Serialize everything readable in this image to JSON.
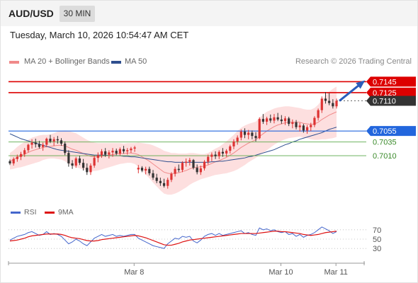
{
  "header": {
    "symbol": "AUD/USD",
    "timeframe": "30 MIN"
  },
  "datetime": "Tuesday, March 10, 2026 10:54:47 AM CET",
  "legend": {
    "ma20_label": "MA 20 + Bollinger Bands",
    "ma50_label": "MA 50",
    "ma20_color": "#f08a8a",
    "ma50_color": "#2f4f8f"
  },
  "credit": "Research © 2026 Trading Central",
  "colors": {
    "resistance": "#dd0000",
    "pivot": "#2266dd",
    "support": "#5aaa4a",
    "current": "#333333",
    "bull": "#dd3333",
    "bear": "#333333",
    "band_fill": "#fddcdc",
    "rsi": "#4466cc",
    "rsi_ma": "#dd1111",
    "arrow": "#2a5dbb"
  },
  "levels": [
    {
      "value": 0.7145,
      "label": "0.7145",
      "kind": "resistance"
    },
    {
      "value": 0.7125,
      "label": "0.7125",
      "kind": "resistance"
    },
    {
      "value": 0.711,
      "label": "0.7110",
      "kind": "current"
    },
    {
      "value": 0.7055,
      "label": "0.7055",
      "kind": "pivot"
    },
    {
      "value": 0.7035,
      "label": "0.7035",
      "kind": "support"
    },
    {
      "value": 0.701,
      "label": "0.7010",
      "kind": "support"
    }
  ],
  "rsi_panel": {
    "rsi_label": "RSI",
    "ma_label": "9MA",
    "ticks": [
      70,
      50,
      30
    ]
  },
  "chart_data": {
    "type": "candlestick",
    "instrument": "AUD/USD",
    "interval": "30 MIN",
    "xlabels": [
      "Mar 8",
      "Mar 10",
      "Mar 11"
    ],
    "ylim": [
      0.6925,
      0.717
    ],
    "candles": [
      [
        0.7,
        0.7003,
        0.6993,
        0.6996
      ],
      [
        0.6996,
        0.7007,
        0.6992,
        0.7004
      ],
      [
        0.7004,
        0.7012,
        0.6999,
        0.7008
      ],
      [
        0.7008,
        0.7017,
        0.7002,
        0.7013
      ],
      [
        0.7013,
        0.7024,
        0.7008,
        0.702
      ],
      [
        0.702,
        0.7032,
        0.7016,
        0.703
      ],
      [
        0.703,
        0.704,
        0.7023,
        0.7034
      ],
      [
        0.7034,
        0.7041,
        0.7025,
        0.7031
      ],
      [
        0.7031,
        0.7037,
        0.7023,
        0.7026
      ],
      [
        0.7026,
        0.7034,
        0.7019,
        0.703
      ],
      [
        0.703,
        0.7043,
        0.7026,
        0.7041
      ],
      [
        0.7041,
        0.7048,
        0.7033,
        0.7036
      ],
      [
        0.7036,
        0.7044,
        0.7028,
        0.704
      ],
      [
        0.704,
        0.7046,
        0.7032,
        0.7038
      ],
      [
        0.7038,
        0.7042,
        0.7028,
        0.7032
      ],
      [
        0.7032,
        0.7036,
        0.7011,
        0.7015
      ],
      [
        0.7015,
        0.702,
        0.699,
        0.6996
      ],
      [
        0.6996,
        0.7002,
        0.6986,
        0.6992
      ],
      [
        0.6992,
        0.7008,
        0.6988,
        0.7005
      ],
      [
        0.7005,
        0.701,
        0.6993,
        0.6997
      ],
      [
        0.6997,
        0.7004,
        0.6983,
        0.6988
      ],
      [
        0.6988,
        0.6996,
        0.6975,
        0.698
      ],
      [
        0.698,
        0.6996,
        0.6975,
        0.6992
      ],
      [
        0.6992,
        0.701,
        0.6988,
        0.7006
      ],
      [
        0.7006,
        0.7016,
        0.6998,
        0.7011
      ],
      [
        0.7011,
        0.7022,
        0.7006,
        0.7018
      ],
      [
        0.7018,
        0.7024,
        0.7008,
        0.7012
      ],
      [
        0.7012,
        0.702,
        0.7005,
        0.7016
      ],
      [
        0.7016,
        0.7024,
        0.7008,
        0.7019
      ],
      [
        0.7019,
        0.7023,
        0.7011,
        0.7014
      ],
      [
        0.7014,
        0.7025,
        0.701,
        0.7022
      ],
      [
        0.7022,
        0.7028,
        0.7014,
        0.7018
      ],
      [
        0.7018,
        0.7024,
        0.7012,
        0.702
      ],
      [
        0.702,
        0.7026,
        0.7015,
        0.7023
      ],
      [
        0.7023,
        0.7028,
        0.7017,
        0.7025
      ],
      [
        0.6985,
        0.6993,
        0.6978,
        0.6988
      ],
      [
        0.6988,
        0.6991,
        0.698,
        0.6983
      ],
      [
        0.6983,
        0.699,
        0.6976,
        0.6986
      ],
      [
        0.6986,
        0.699,
        0.6974,
        0.6978
      ],
      [
        0.6978,
        0.6984,
        0.6966,
        0.697
      ],
      [
        0.697,
        0.6977,
        0.696,
        0.6964
      ],
      [
        0.6964,
        0.697,
        0.6955,
        0.696
      ],
      [
        0.696,
        0.6968,
        0.6952,
        0.6955
      ],
      [
        0.6955,
        0.697,
        0.695,
        0.6966
      ],
      [
        0.6966,
        0.698,
        0.6962,
        0.6977
      ],
      [
        0.6977,
        0.699,
        0.6972,
        0.6986
      ],
      [
        0.6986,
        0.6994,
        0.698,
        0.6984
      ],
      [
        0.6984,
        0.7,
        0.698,
        0.6997
      ],
      [
        0.6997,
        0.7005,
        0.699,
        0.6999
      ],
      [
        0.6999,
        0.7006,
        0.6992,
        0.7002
      ],
      [
        0.7002,
        0.7004,
        0.6985,
        0.6988
      ],
      [
        0.6988,
        0.6994,
        0.6976,
        0.698
      ],
      [
        0.698,
        0.6992,
        0.6975,
        0.6987
      ],
      [
        0.6987,
        0.7002,
        0.6983,
        0.6999
      ],
      [
        0.6999,
        0.7012,
        0.6994,
        0.7008
      ],
      [
        0.7008,
        0.7016,
        0.7,
        0.7012
      ],
      [
        0.7012,
        0.7018,
        0.7004,
        0.7009
      ],
      [
        0.7009,
        0.702,
        0.7004,
        0.7017
      ],
      [
        0.7017,
        0.7024,
        0.7008,
        0.7014
      ],
      [
        0.7014,
        0.7022,
        0.7008,
        0.7019
      ],
      [
        0.7019,
        0.703,
        0.7014,
        0.7027
      ],
      [
        0.7027,
        0.704,
        0.7022,
        0.7036
      ],
      [
        0.7036,
        0.7047,
        0.703,
        0.7043
      ],
      [
        0.7043,
        0.7058,
        0.7038,
        0.7054
      ],
      [
        0.7054,
        0.706,
        0.7042,
        0.7048
      ],
      [
        0.7048,
        0.7057,
        0.704,
        0.7052
      ],
      [
        0.7052,
        0.7056,
        0.704,
        0.7046
      ],
      [
        0.7046,
        0.7053,
        0.7036,
        0.7042
      ],
      [
        0.7042,
        0.708,
        0.704,
        0.7077
      ],
      [
        0.7077,
        0.7086,
        0.7068,
        0.7072
      ],
      [
        0.7072,
        0.7081,
        0.7066,
        0.7078
      ],
      [
        0.7078,
        0.7085,
        0.707,
        0.7074
      ],
      [
        0.7074,
        0.7086,
        0.7069,
        0.708
      ],
      [
        0.708,
        0.7088,
        0.7073,
        0.7076
      ],
      [
        0.7076,
        0.7084,
        0.7068,
        0.7073
      ],
      [
        0.7073,
        0.7082,
        0.7066,
        0.7078
      ],
      [
        0.7078,
        0.7081,
        0.7064,
        0.7068
      ],
      [
        0.7068,
        0.7076,
        0.706,
        0.7071
      ],
      [
        0.7071,
        0.7075,
        0.7058,
        0.7062
      ],
      [
        0.7062,
        0.707,
        0.7054,
        0.7065
      ],
      [
        0.7065,
        0.7068,
        0.7052,
        0.7056
      ],
      [
        0.7056,
        0.7066,
        0.705,
        0.7062
      ],
      [
        0.7062,
        0.707,
        0.7055,
        0.7066
      ],
      [
        0.7066,
        0.7082,
        0.7062,
        0.7079
      ],
      [
        0.7079,
        0.7096,
        0.7074,
        0.7093
      ],
      [
        0.7093,
        0.7118,
        0.7088,
        0.7114
      ],
      [
        0.7114,
        0.7126,
        0.7105,
        0.711
      ],
      [
        0.711,
        0.7124,
        0.7102,
        0.7106
      ],
      [
        0.7106,
        0.7113,
        0.7096,
        0.71
      ],
      [
        0.71,
        0.7114,
        0.7096,
        0.711
      ]
    ],
    "ma20": [
      0.7,
      0.7003,
      0.7007,
      0.701,
      0.7013,
      0.7016,
      0.7019,
      0.7021,
      0.7023,
      0.7025,
      0.7026,
      0.7027,
      0.7028,
      0.7029,
      0.7029,
      0.7028,
      0.7025,
      0.7022,
      0.702,
      0.7017,
      0.7014,
      0.7011,
      0.7009,
      0.7008,
      0.7008,
      0.7009,
      0.701,
      0.7011,
      0.7012,
      0.7013,
      0.7014,
      0.7014,
      0.7015,
      0.7015,
      0.7014,
      0.7012,
      0.7008,
      0.7004,
      0.7,
      0.6995,
      0.699,
      0.6985,
      0.698,
      0.6978,
      0.6977,
      0.6978,
      0.6979,
      0.6981,
      0.6983,
      0.6986,
      0.6988,
      0.6989,
      0.699,
      0.6991,
      0.6993,
      0.6996,
      0.6999,
      0.7001,
      0.7004,
      0.7007,
      0.7011,
      0.7015,
      0.702,
      0.7025,
      0.7029,
      0.7033,
      0.7036,
      0.7039,
      0.7045,
      0.705,
      0.7055,
      0.7059,
      0.7063,
      0.7066,
      0.7068,
      0.707,
      0.7071,
      0.7071,
      0.7071,
      0.7071,
      0.7069,
      0.7068,
      0.7067,
      0.7068,
      0.7071,
      0.7076,
      0.708,
      0.7084,
      0.7087,
      0.709
    ],
    "ma50": [
      0.705,
      0.7047,
      0.7044,
      0.7041,
      0.7039,
      0.7037,
      0.7035,
      0.7033,
      0.7031,
      0.7029,
      0.7027,
      0.7025,
      0.7023,
      0.7021,
      0.702,
      0.7019,
      0.7018,
      0.7017,
      0.7016,
      0.7015,
      0.7014,
      0.7013,
      0.7012,
      0.7011,
      0.7011,
      0.7011,
      0.7011,
      0.701,
      0.701,
      0.701,
      0.701,
      0.7009,
      0.7009,
      0.7008,
      0.7008,
      0.7007,
      0.7006,
      0.7005,
      0.7004,
      0.7003,
      0.7002,
      0.7001,
      0.7,
      0.6999,
      0.6999,
      0.6998,
      0.6998,
      0.6998,
      0.6998,
      0.6998,
      0.6998,
      0.6998,
      0.6998,
      0.6998,
      0.6998,
      0.6999,
      0.6999,
      0.7,
      0.7,
      0.7001,
      0.7002,
      0.7003,
      0.7004,
      0.7005,
      0.7006,
      0.7008,
      0.7009,
      0.7011,
      0.7013,
      0.7015,
      0.7017,
      0.7019,
      0.7021,
      0.7024,
      0.7027,
      0.703,
      0.7032,
      0.7035,
      0.7037,
      0.704,
      0.7042,
      0.7044,
      0.7046,
      0.7048,
      0.705,
      0.7052,
      0.7055,
      0.7058,
      0.706,
      0.7062
    ],
    "band_half_width": [
      0.0015,
      0.0017,
      0.0019,
      0.0021,
      0.0022,
      0.0023,
      0.0024,
      0.0024,
      0.0024,
      0.0023,
      0.0022,
      0.0022,
      0.0023,
      0.0025,
      0.0026,
      0.0028,
      0.003,
      0.0031,
      0.0031,
      0.003,
      0.0029,
      0.0028,
      0.0027,
      0.0026,
      0.0025,
      0.0024,
      0.0023,
      0.0022,
      0.0021,
      0.002,
      0.0019,
      0.0018,
      0.0018,
      0.0018,
      0.0019,
      0.0022,
      0.0025,
      0.0028,
      0.0031,
      0.0034,
      0.0036,
      0.0038,
      0.0039,
      0.0039,
      0.0038,
      0.0037,
      0.0035,
      0.0033,
      0.0031,
      0.0029,
      0.0027,
      0.0025,
      0.0023,
      0.0022,
      0.0022,
      0.0023,
      0.0024,
      0.0025,
      0.0027,
      0.0029,
      0.0031,
      0.0033,
      0.0035,
      0.0036,
      0.0036,
      0.0035,
      0.0034,
      0.0033,
      0.0034,
      0.0035,
      0.0035,
      0.0034,
      0.0033,
      0.0032,
      0.0031,
      0.003,
      0.0029,
      0.0028,
      0.0027,
      0.0026,
      0.0026,
      0.0026,
      0.0027,
      0.0029,
      0.0032,
      0.0036,
      0.004,
      0.0043,
      0.0045,
      0.0046
    ],
    "rsi": [
      48,
      52,
      56,
      58,
      60,
      64,
      66,
      62,
      58,
      60,
      66,
      60,
      62,
      60,
      56,
      48,
      40,
      44,
      50,
      46,
      40,
      36,
      44,
      52,
      56,
      60,
      56,
      58,
      60,
      56,
      58,
      56,
      58,
      60,
      60,
      52,
      48,
      44,
      40,
      36,
      34,
      32,
      30,
      40,
      46,
      52,
      50,
      56,
      54,
      56,
      46,
      42,
      48,
      56,
      60,
      62,
      58,
      62,
      58,
      60,
      62,
      64,
      66,
      68,
      62,
      64,
      60,
      58,
      74,
      70,
      72,
      68,
      70,
      66,
      64,
      66,
      60,
      62,
      56,
      60,
      54,
      58,
      60,
      64,
      70,
      76,
      72,
      68,
      62,
      66
    ],
    "rsi_ma": [
      46,
      47,
      48,
      50,
      52,
      55,
      57,
      58,
      59,
      60,
      61,
      61,
      61,
      61,
      60,
      58,
      55,
      53,
      52,
      51,
      49,
      47,
      46,
      46,
      47,
      49,
      50,
      51,
      52,
      53,
      54,
      55,
      56,
      57,
      58,
      57,
      55,
      53,
      50,
      47,
      44,
      41,
      38,
      37,
      37,
      39,
      41,
      44,
      46,
      48,
      49,
      50,
      51,
      52,
      53,
      54,
      55,
      56,
      57,
      58,
      59,
      60,
      61,
      62,
      62,
      62,
      62,
      62,
      63,
      64,
      65,
      66,
      67,
      67,
      66,
      66,
      65,
      64,
      63,
      62,
      60,
      59,
      58,
      59,
      60,
      62,
      64,
      65,
      66,
      67
    ]
  }
}
